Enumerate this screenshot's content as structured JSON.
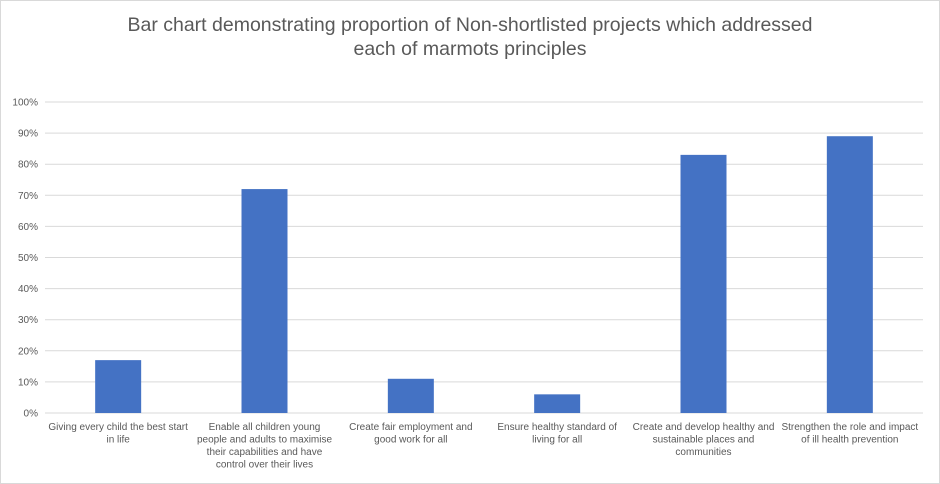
{
  "chart_data": {
    "type": "bar",
    "title_lines": [
      "Bar chart demonstrating proportion of Non-shortlisted projects which addressed",
      "each of marmots principles"
    ],
    "xlabel": "",
    "ylabel": "",
    "ylim": [
      0,
      100
    ],
    "y_ticks": [
      "0%",
      "10%",
      "20%",
      "30%",
      "40%",
      "50%",
      "60%",
      "70%",
      "80%",
      "90%",
      "100%"
    ],
    "categories": [
      [
        "Giving every child the best start",
        "in life"
      ],
      [
        "Enable all children young",
        "people and adults to maximise",
        "their capabilities and have",
        "control over their lives"
      ],
      [
        "Create fair employment and",
        "good work for all"
      ],
      [
        "Ensure healthy standard of",
        "living for all"
      ],
      [
        "Create and develop healthy and",
        "sustainable places and",
        "communities"
      ],
      [
        "Strengthen the role and impact",
        "of ill health prevention"
      ]
    ],
    "values": [
      17,
      72,
      11,
      6,
      83,
      89
    ],
    "grid": true,
    "legend": "none",
    "bar_color": "#4472c4",
    "grid_color": "#d9d9d9",
    "text_color": "#595959"
  }
}
